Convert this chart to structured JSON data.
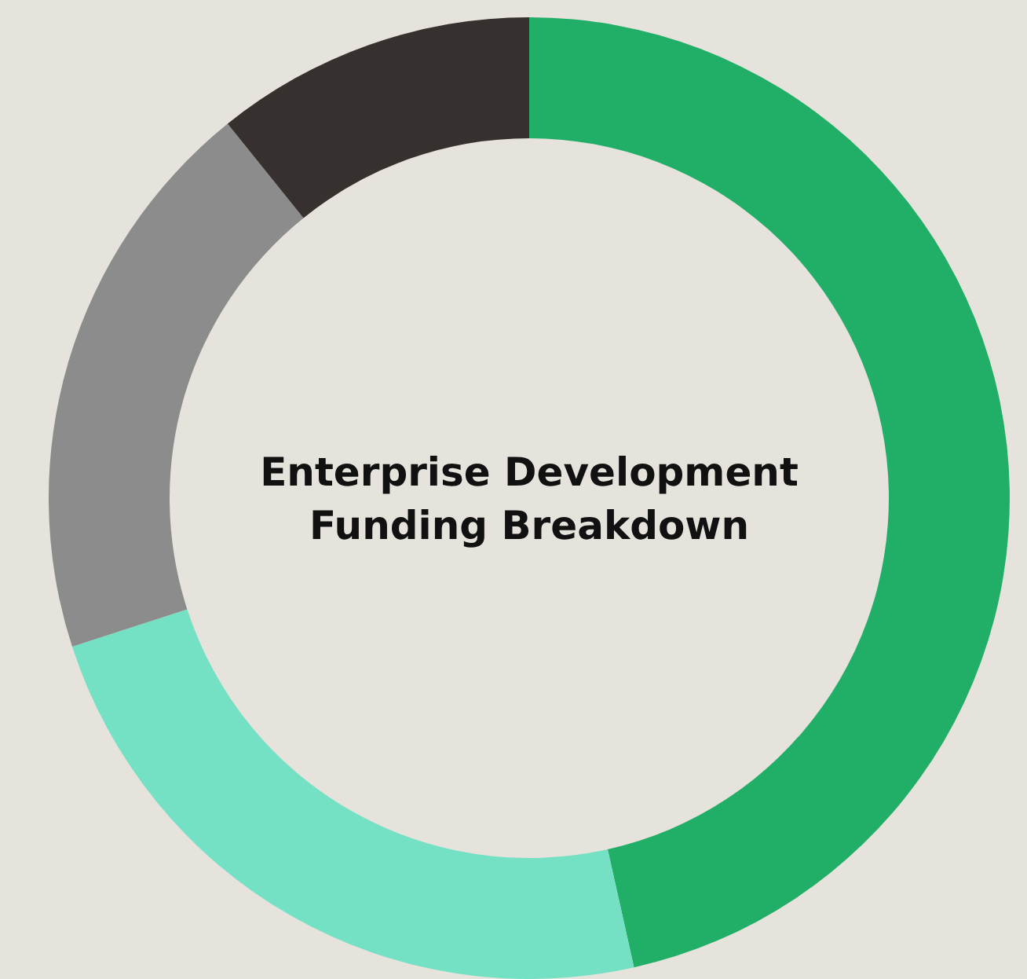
{
  "chart_data": {
    "type": "donut",
    "title": "Enterprise Development Funding Breakdown",
    "categories": [
      null,
      null,
      null,
      null
    ],
    "values": [
      46.5,
      23.5,
      19.2,
      10.8
    ],
    "colors": [
      "#21ae66",
      "#74e0c4",
      "#8c8c8c",
      "#36312e"
    ]
  }
}
